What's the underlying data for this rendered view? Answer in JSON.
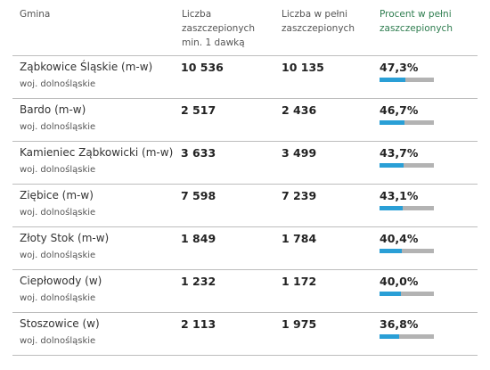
{
  "headers": {
    "gmina": "Gmina",
    "dose1": [
      "Liczba",
      "zaszczepionych",
      "min. 1 dawką"
    ],
    "full": [
      "Liczba w pełni",
      "zaszczepionych"
    ],
    "pct": [
      "Procent w pełni",
      "zaszczepionych"
    ]
  },
  "colors": {
    "bar_fill": "#2a9fd6",
    "bar_track": "#b3b3b3",
    "pct_header": "#2e7d4f"
  },
  "rows": [
    {
      "name": "Ząbkowice Śląskie (m-w)",
      "region": "woj. dolnośląskie",
      "dose1": "10 536",
      "full": "10 135",
      "pct_text": "47,3%",
      "pct": 47.3
    },
    {
      "name": "Bardo (m-w)",
      "region": "woj. dolnośląskie",
      "dose1": "2 517",
      "full": "2 436",
      "pct_text": "46,7%",
      "pct": 46.7
    },
    {
      "name": "Kamieniec Ząbkowicki (m-w)",
      "region": "woj. dolnośląskie",
      "dose1": "3 633",
      "full": "3 499",
      "pct_text": "43,7%",
      "pct": 43.7
    },
    {
      "name": "Ziębice (m-w)",
      "region": "woj. dolnośląskie",
      "dose1": "7 598",
      "full": "7 239",
      "pct_text": "43,1%",
      "pct": 43.1
    },
    {
      "name": "Złoty Stok (m-w)",
      "region": "woj. dolnośląskie",
      "dose1": "1 849",
      "full": "1 784",
      "pct_text": "40,4%",
      "pct": 40.4
    },
    {
      "name": "Ciepłowody (w)",
      "region": "woj. dolnośląskie",
      "dose1": "1 232",
      "full": "1 172",
      "pct_text": "40,0%",
      "pct": 40.0
    },
    {
      "name": "Stoszowice (w)",
      "region": "woj. dolnośląskie",
      "dose1": "2 113",
      "full": "1 975",
      "pct_text": "36,8%",
      "pct": 36.8
    }
  ]
}
